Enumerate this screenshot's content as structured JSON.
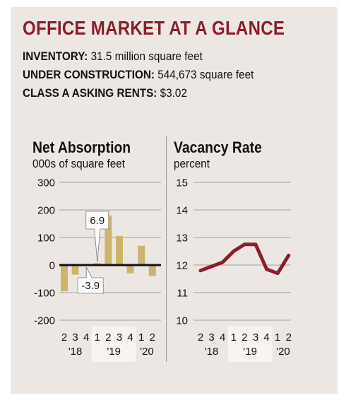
{
  "header": {
    "title": "OFFICE MARKET AT A GLANCE",
    "stats": [
      {
        "label": "INVENTORY:",
        "value": "31.5 million square feet"
      },
      {
        "label": "UNDER CONSTRUCTION:",
        "value": "544,673 square feet"
      },
      {
        "label": "CLASS A ASKING RENTS:",
        "value": "$3.02"
      }
    ]
  },
  "colors": {
    "title": "#8c1d2b",
    "bar": "#cdb46c",
    "line": "#8c1d2b",
    "panel": "#ede7e3",
    "highlight": "#f8f5f1"
  },
  "chart_data": [
    {
      "type": "bar",
      "title": "Net Absorption",
      "subtitle": "000s of square feet",
      "categories": [
        "2",
        "3",
        "4",
        "1",
        "2",
        "3",
        "4",
        "1",
        "2"
      ],
      "year_labels": [
        "'18",
        "'19",
        "'20"
      ],
      "values": [
        -95,
        -35,
        -3.9,
        6.9,
        180,
        105,
        -30,
        70,
        -40
      ],
      "ylim": [
        -200,
        300
      ],
      "yticks": [
        300,
        200,
        100,
        0,
        -100,
        -200
      ],
      "ytick_labels": [
        "300",
        "200",
        "100",
        "0",
        "-100",
        "-200"
      ],
      "annotations": [
        {
          "index": 3,
          "text": "6.9"
        },
        {
          "index": 2,
          "text": "-3.9"
        }
      ],
      "grid": true
    },
    {
      "type": "line",
      "title": "Vacancy Rate",
      "subtitle": "percent",
      "categories": [
        "2",
        "3",
        "4",
        "1",
        "2",
        "3",
        "4",
        "1",
        "2"
      ],
      "year_labels": [
        "'18",
        "'19",
        "'20"
      ],
      "values": [
        11.8,
        11.95,
        12.1,
        12.5,
        12.75,
        12.75,
        11.85,
        11.7,
        12.35
      ],
      "ylim": [
        10,
        15
      ],
      "yticks": [
        15,
        14,
        13,
        12,
        11,
        10
      ],
      "ytick_labels": [
        "15",
        "14",
        "13",
        "12",
        "11",
        "10"
      ],
      "grid": true
    }
  ]
}
